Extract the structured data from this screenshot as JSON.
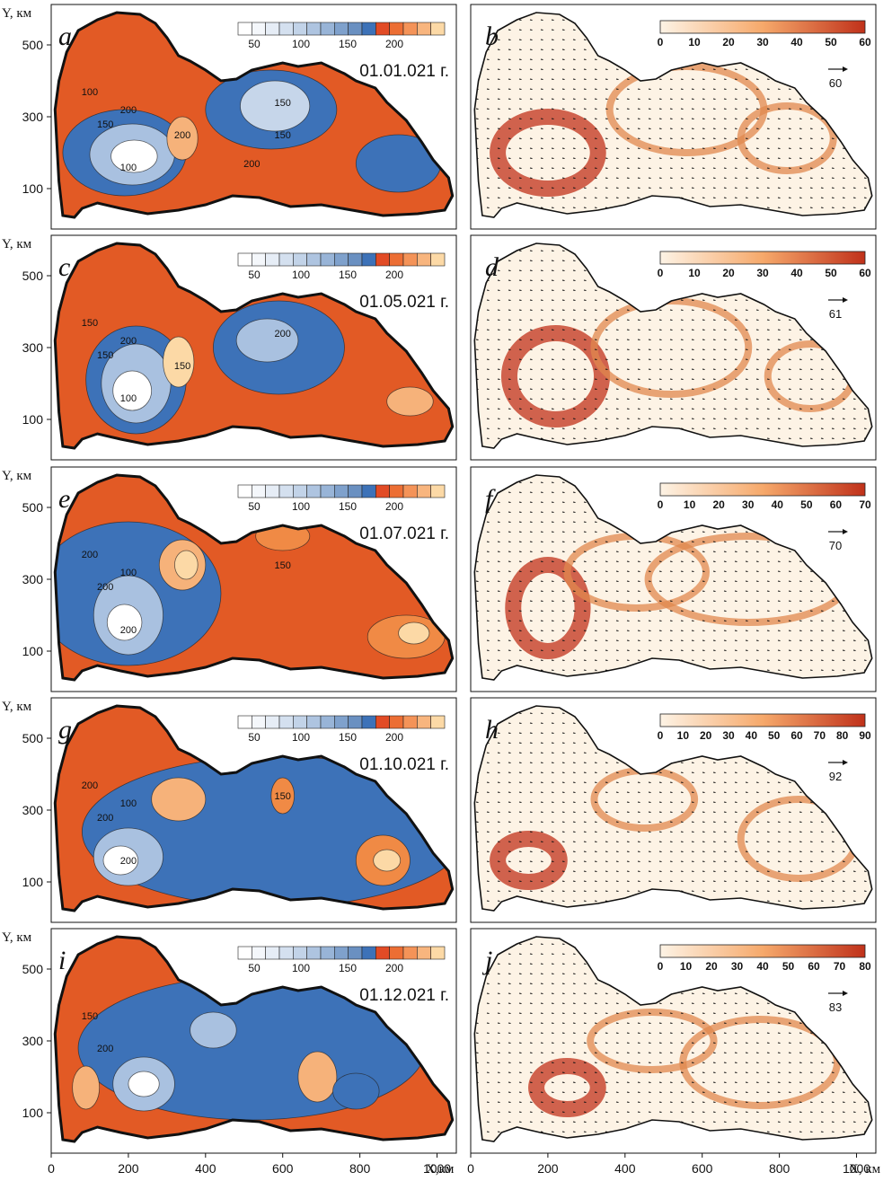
{
  "axes": {
    "y_axis_label": "Y, км",
    "x_axis_label_left": "X,км",
    "x_axis_label_right": "X, км",
    "y_ticks": [
      "100",
      "300",
      "500"
    ],
    "x_ticks": [
      "0",
      "200",
      "400",
      "600",
      "800",
      "1000"
    ]
  },
  "colors": {
    "depth_blue": "#3d72b8",
    "depth_light": "#c6d6ea",
    "depth_orange": "#e25a25",
    "depth_peach": "#fcd9a6",
    "speed_low": "#fdf3e5",
    "speed_high": "#c0311a"
  },
  "chart_data": [
    {
      "panel": "a",
      "type": "heatmap",
      "date": "01.01.021 г.",
      "colorbar_ticks": [
        "50",
        "100",
        "150",
        "200"
      ],
      "contour_labels": [
        "100",
        "150",
        "200",
        "150",
        "100",
        "200",
        "200",
        "150"
      ],
      "xlim": [
        0,
        1100
      ],
      "ylim": [
        0,
        600
      ]
    },
    {
      "panel": "b",
      "type": "heatmap",
      "reference_vector": "60",
      "colorbar_ticks": [
        "0",
        "10",
        "20",
        "30",
        "40",
        "50",
        "60"
      ],
      "xlim": [
        0,
        1100
      ],
      "ylim": [
        0,
        600
      ]
    },
    {
      "panel": "c",
      "type": "heatmap",
      "date": "01.05.021 г.",
      "colorbar_ticks": [
        "50",
        "100",
        "150",
        "200"
      ],
      "contour_labels": [
        "150",
        "150",
        "200",
        "200",
        "100",
        "150"
      ],
      "xlim": [
        0,
        1100
      ],
      "ylim": [
        0,
        600
      ]
    },
    {
      "panel": "d",
      "type": "heatmap",
      "reference_vector": "61",
      "colorbar_ticks": [
        "0",
        "10",
        "20",
        "30",
        "40",
        "50",
        "60"
      ],
      "xlim": [
        0,
        1100
      ],
      "ylim": [
        0,
        600
      ]
    },
    {
      "panel": "e",
      "type": "heatmap",
      "date": "01.07.021 г.",
      "colorbar_ticks": [
        "50",
        "100",
        "150",
        "200"
      ],
      "contour_labels": [
        "200",
        "200",
        "100",
        "150",
        "200"
      ],
      "xlim": [
        0,
        1100
      ],
      "ylim": [
        0,
        600
      ]
    },
    {
      "panel": "f",
      "type": "heatmap",
      "reference_vector": "70",
      "colorbar_ticks": [
        "0",
        "10",
        "20",
        "30",
        "40",
        "50",
        "60",
        "70"
      ],
      "xlim": [
        0,
        1100
      ],
      "ylim": [
        0,
        600
      ]
    },
    {
      "panel": "g",
      "type": "heatmap",
      "date": "01.10.021 г.",
      "colorbar_ticks": [
        "50",
        "100",
        "150",
        "200"
      ],
      "contour_labels": [
        "200",
        "200",
        "100",
        "150",
        "200"
      ],
      "xlim": [
        0,
        1100
      ],
      "ylim": [
        0,
        600
      ]
    },
    {
      "panel": "h",
      "type": "heatmap",
      "reference_vector": "92",
      "colorbar_ticks": [
        "0",
        "10",
        "20",
        "30",
        "40",
        "50",
        "60",
        "70",
        "80",
        "90"
      ],
      "xlim": [
        0,
        1100
      ],
      "ylim": [
        0,
        600
      ]
    },
    {
      "panel": "i",
      "type": "heatmap",
      "date": "01.12.021 г.",
      "colorbar_ticks": [
        "50",
        "100",
        "150",
        "200"
      ],
      "contour_labels": [
        "150",
        "200"
      ],
      "xlim": [
        0,
        1100
      ],
      "ylim": [
        0,
        600
      ]
    },
    {
      "panel": "j",
      "type": "heatmap",
      "reference_vector": "83",
      "colorbar_ticks": [
        "0",
        "10",
        "20",
        "30",
        "40",
        "50",
        "60",
        "70",
        "80"
      ],
      "xlim": [
        0,
        1100
      ],
      "ylim": [
        0,
        600
      ]
    }
  ]
}
